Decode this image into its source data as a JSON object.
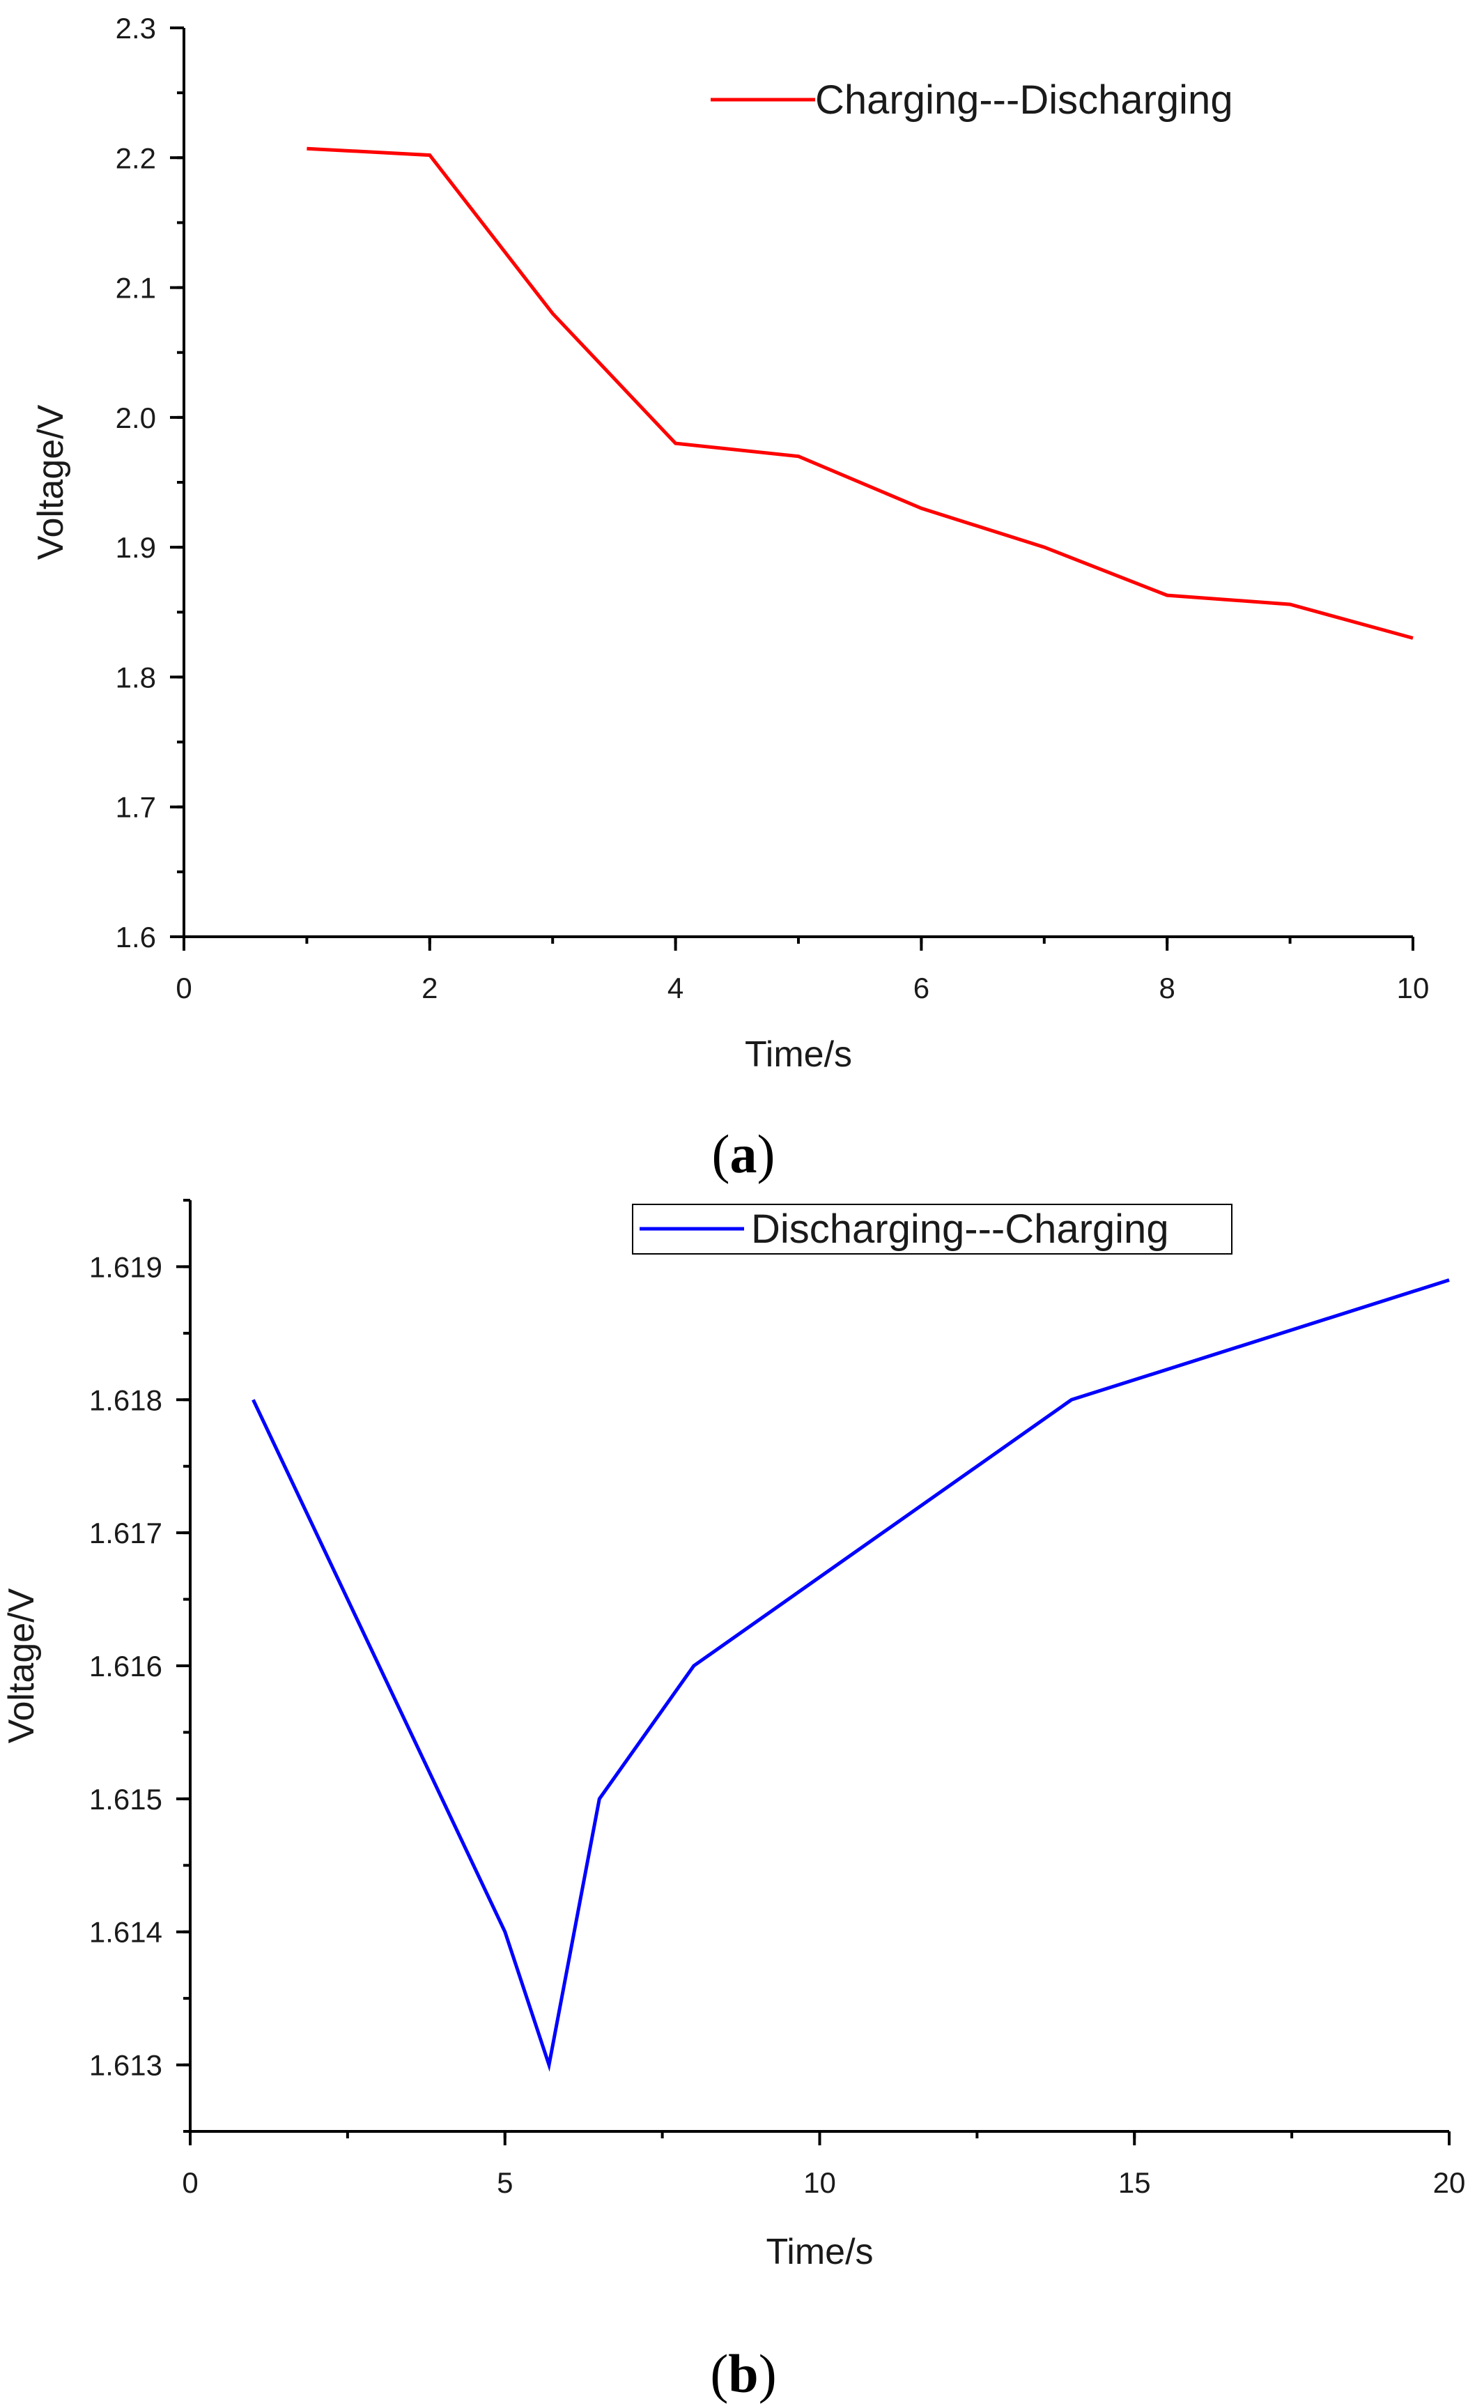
{
  "chart_data": [
    {
      "type": "line",
      "panel": "a",
      "xlabel": "Time/s",
      "ylabel": "Voltage/V",
      "xlim": [
        0,
        10
      ],
      "ylim": [
        1.6,
        2.3
      ],
      "xticks": [
        0,
        2,
        4,
        6,
        8,
        10
      ],
      "xtick_labels": [
        "0",
        "2",
        "4",
        "6",
        "8",
        "10"
      ],
      "yticks": [
        1.6,
        1.7,
        1.8,
        1.9,
        2.0,
        2.1,
        2.2,
        2.3
      ],
      "ytick_labels": [
        "1.6",
        "1.7",
        "1.8",
        "1.9",
        "2.0",
        "2.1",
        "2.2",
        "2.3"
      ],
      "x_minor_step": 1,
      "y_minor_step": 0.05,
      "legend_position": "top-right",
      "legend_box": false,
      "series": [
        {
          "name": "Charging---Discharging",
          "color": "#ff0000",
          "x": [
            1,
            2,
            3,
            4,
            5,
            6,
            7,
            8,
            9,
            10
          ],
          "y": [
            2.207,
            2.202,
            2.08,
            1.98,
            1.97,
            1.93,
            1.9,
            1.863,
            1.856,
            1.83
          ]
        }
      ]
    },
    {
      "type": "line",
      "panel": "b",
      "xlabel": "Time/s",
      "ylabel": "Voltage/V",
      "xlim": [
        0,
        20
      ],
      "ylim": [
        1.6125,
        1.6195
      ],
      "xticks": [
        0,
        5,
        10,
        15,
        20
      ],
      "xtick_labels": [
        "0",
        "5",
        "10",
        "15",
        "20"
      ],
      "yticks": [
        1.613,
        1.614,
        1.615,
        1.616,
        1.617,
        1.618,
        1.619
      ],
      "ytick_labels": [
        "1.613",
        "1.614",
        "1.615",
        "1.616",
        "1.617",
        "1.618",
        "1.619"
      ],
      "x_minor_step": 2.5,
      "y_minor_step": 0.0005,
      "legend_position": "top-right",
      "legend_box": true,
      "series": [
        {
          "name": "Discharging---Charging",
          "color": "#0000ff",
          "x": [
            1,
            5,
            5.7,
            6.5,
            8,
            14,
            20
          ],
          "y": [
            1.618,
            1.614,
            1.613,
            1.615,
            1.616,
            1.618,
            1.6189
          ]
        }
      ]
    }
  ],
  "panel_labels": [
    "(a)",
    "(b)"
  ],
  "panel_letters": [
    "a",
    "b"
  ]
}
